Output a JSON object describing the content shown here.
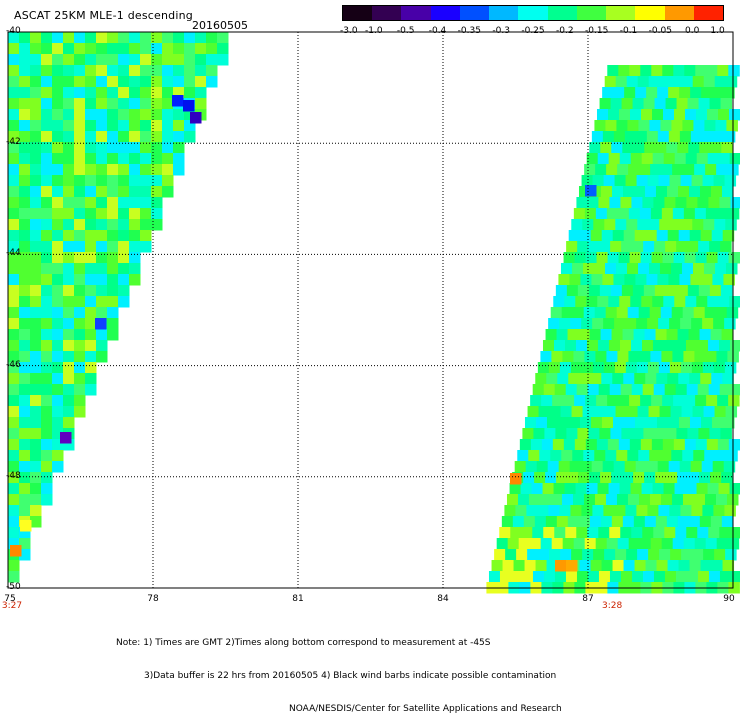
{
  "title": "ASCAT 25KM MLE-1 descending",
  "date": "20160505",
  "colorbar": {
    "labels": [
      "-3.0",
      "-1.0",
      "-0.5",
      "-0.4",
      "-0.35",
      "-0.3",
      "-0.25",
      "-0.2",
      "-0.15",
      "-0.1",
      "-0.05",
      "0.0",
      "1.0"
    ],
    "colors": [
      "#150015",
      "#330052",
      "#4800a8",
      "#1a00ff",
      "#0050ff",
      "#00b8ff",
      "#00fff0",
      "#00ff90",
      "#40ff40",
      "#a8ff20",
      "#ffff00",
      "#ff9900",
      "#ff2200"
    ]
  },
  "axes": {
    "lat_ticks": [
      "-40",
      "-42",
      "-44",
      "-46",
      "-48",
      "-50"
    ],
    "lon_ticks": [
      "75",
      "78",
      "81",
      "84",
      "87",
      "90"
    ]
  },
  "pass_times": [
    {
      "label": "3:27",
      "lon": 75
    },
    {
      "label": "3:28",
      "lon": 87.5
    }
  ],
  "notes": [
    "Note: 1) Times are GMT 2)Times along bottom correspond to measurement at -45S",
    "3)Data buffer is 22 hrs from 20160505 4) Black wind barbs indicate possible contamination",
    "NOAA/NESDIS/Center for Satellite Applications and Research"
  ],
  "map_extent": {
    "lon": [
      75,
      90
    ],
    "lat": [
      -50,
      -40
    ]
  }
}
